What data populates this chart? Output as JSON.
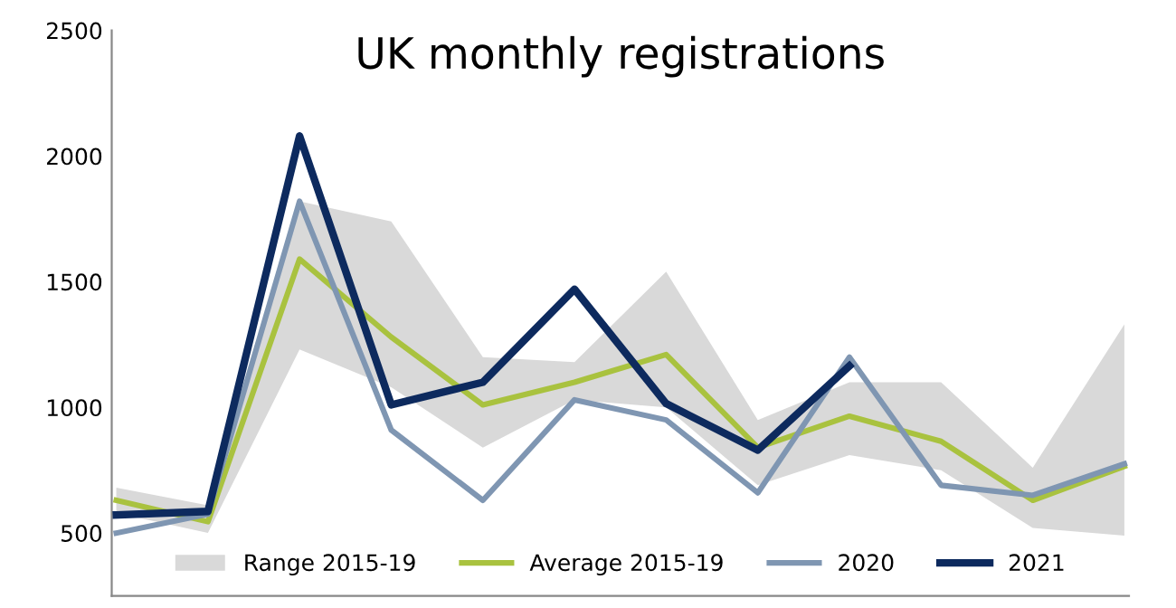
{
  "chart_data": {
    "type": "line",
    "title": "UK monthly registrations",
    "categories": [
      null,
      null,
      null,
      null,
      null,
      null,
      null,
      null,
      null,
      null,
      null,
      null
    ],
    "series": [
      {
        "name": "Range 2015-19",
        "type": "area",
        "color": "#d9d9d9",
        "values": [
          null,
          null,
          null,
          null,
          null,
          null,
          null,
          null,
          null,
          null,
          null,
          null
        ],
        "lower": [
          580,
          500,
          1230,
          1080,
          840,
          1030,
          1000,
          690,
          810,
          750,
          520,
          490
        ],
        "upper": [
          680,
          610,
          1820,
          1740,
          1200,
          1180,
          1540,
          950,
          1100,
          1100,
          760,
          1330
        ]
      },
      {
        "name": "Average 2015-19",
        "color": "#a9c23f",
        "values": [
          630,
          545,
          1590,
          1280,
          1010,
          1100,
          1210,
          840,
          965,
          865,
          630,
          765
        ]
      },
      {
        "name": "2020",
        "color": "#7f96b2",
        "values": [
          500,
          575,
          1820,
          910,
          630,
          1030,
          950,
          660,
          1200,
          690,
          650,
          775
        ]
      },
      {
        "name": "2021",
        "color": "#0d2a5e",
        "values": [
          572,
          586,
          2080,
          1010,
          1100,
          1470,
          1015,
          830,
          1165,
          null,
          null,
          null
        ]
      }
    ],
    "ylim": [
      250,
      2500
    ],
    "yticks": [
      500,
      1000,
      1500,
      2000,
      2500
    ],
    "grid": false,
    "legend": "bottom",
    "marker": "none",
    "line_style": "solid"
  }
}
